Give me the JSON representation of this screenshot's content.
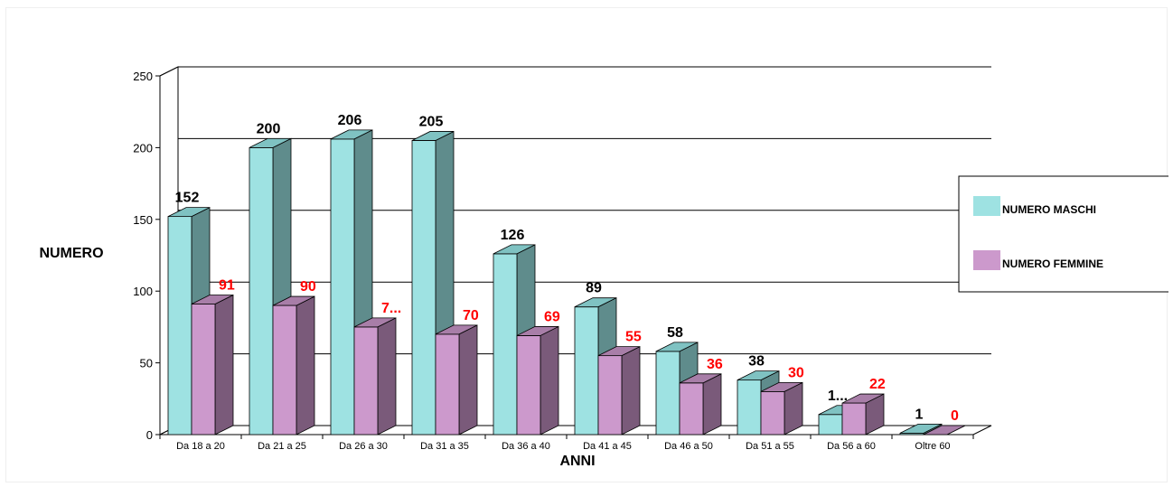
{
  "chart_data": {
    "type": "bar",
    "title": "",
    "xlabel": "ANNI",
    "ylabel": "NUMERO",
    "ylim": [
      0,
      250
    ],
    "yticks": [
      0,
      50,
      100,
      150,
      200,
      250
    ],
    "grid": true,
    "legend_position": "right",
    "categories": [
      "Da 18 a 20",
      "Da 21 a 25",
      "Da 26 a 30",
      "Da 31 a 35",
      "Da 36 a 40",
      "Da 41 a 45",
      "Da 46 a 50",
      "Da 51 a 55",
      "Da 56 a 60",
      "Oltre 60"
    ],
    "series": [
      {
        "name": "NUMERO MASCHI",
        "values": [
          152,
          200,
          206,
          205,
          126,
          89,
          58,
          38,
          14,
          1
        ],
        "labels": [
          "152",
          "200",
          "206",
          "205",
          "126",
          "89",
          "58",
          "38",
          "1...",
          "1"
        ],
        "color": "#9ee2e2",
        "side_color": "#5f8c8c",
        "top_color": "#7fc2c2",
        "label_color": "#000000"
      },
      {
        "name": "NUMERO FEMMINE",
        "values": [
          91,
          90,
          75,
          70,
          69,
          55,
          36,
          30,
          22,
          0
        ],
        "labels": [
          "91",
          "90",
          "7...",
          "70",
          "69",
          "55",
          "36",
          "30",
          "22",
          "0"
        ],
        "color": "#cc99cc",
        "side_color": "#7a5a7a",
        "top_color": "#a87ea8",
        "label_color": "#ff0000"
      }
    ]
  }
}
